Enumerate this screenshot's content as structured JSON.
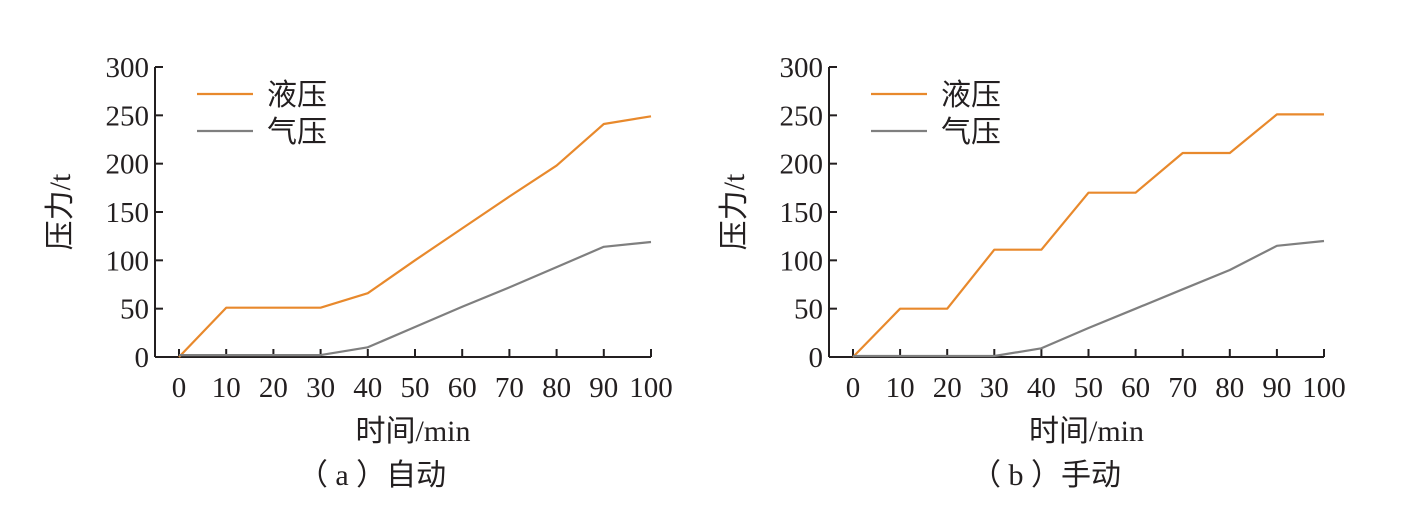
{
  "chart_data": [
    {
      "type": "line",
      "caption": "（ a ）自动",
      "xlabel": "时间/min",
      "ylabel": "压力/t",
      "xlim": [
        0,
        100
      ],
      "ylim": [
        0,
        300
      ],
      "xticks": [
        0,
        10,
        20,
        30,
        40,
        50,
        60,
        70,
        80,
        90,
        100
      ],
      "yticks": [
        0,
        50,
        100,
        150,
        200,
        250,
        300
      ],
      "legend": "top-left",
      "grid": false,
      "series": [
        {
          "name": "液压",
          "color": "#e8892c",
          "x": [
            0,
            10,
            20,
            30,
            40,
            50,
            60,
            70,
            80,
            90,
            100
          ],
          "y": [
            0,
            51,
            51,
            51,
            66,
            100,
            133,
            166,
            198,
            241,
            249
          ]
        },
        {
          "name": "气压",
          "color": "#7f7f7f",
          "x": [
            0,
            10,
            20,
            30,
            40,
            50,
            60,
            70,
            80,
            90,
            100
          ],
          "y": [
            2,
            2,
            2,
            2,
            10,
            31,
            52,
            72,
            93,
            114,
            119
          ]
        }
      ]
    },
    {
      "type": "line",
      "caption": "（ b ）手动",
      "xlabel": "时间/min",
      "ylabel": "压力/t",
      "xlim": [
        0,
        100
      ],
      "ylim": [
        0,
        300
      ],
      "xticks": [
        0,
        10,
        20,
        30,
        40,
        50,
        60,
        70,
        80,
        90,
        100
      ],
      "yticks": [
        0,
        50,
        100,
        150,
        200,
        250,
        300
      ],
      "legend": "top-left",
      "grid": false,
      "series": [
        {
          "name": "液压",
          "color": "#e8892c",
          "x": [
            0,
            10,
            20,
            30,
            40,
            50,
            60,
            70,
            80,
            90,
            100
          ],
          "y": [
            0,
            50,
            50,
            111,
            111,
            170,
            170,
            211,
            211,
            251,
            251
          ]
        },
        {
          "name": "气压",
          "color": "#7f7f7f",
          "x": [
            0,
            10,
            20,
            30,
            40,
            50,
            60,
            70,
            80,
            90,
            100
          ],
          "y": [
            1,
            1,
            1,
            1,
            9,
            30,
            50,
            70,
            90,
            115,
            120
          ]
        }
      ]
    }
  ]
}
